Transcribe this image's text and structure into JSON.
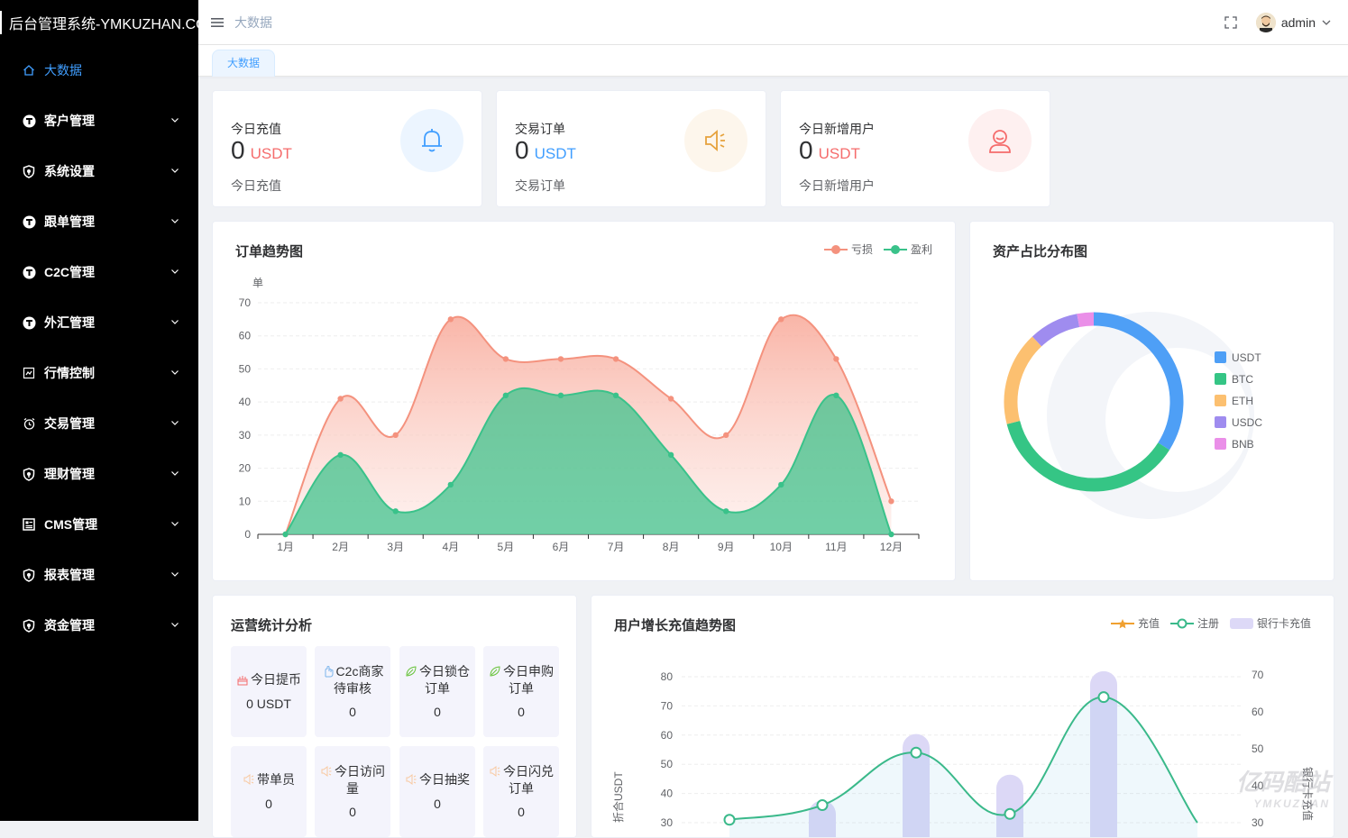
{
  "app": {
    "title": "后台管理系统-YMKUZHAN.COM"
  },
  "sidebar": {
    "items": [
      {
        "label": "大数据",
        "icon": "home-icon",
        "active": true
      },
      {
        "label": "客户管理",
        "icon": "settings-circle-icon"
      },
      {
        "label": "系统设置",
        "icon": "shield-icon"
      },
      {
        "label": "跟单管理",
        "icon": "settings-circle-icon"
      },
      {
        "label": "C2C管理",
        "icon": "settings-circle-icon"
      },
      {
        "label": "外汇管理",
        "icon": "settings-circle-icon"
      },
      {
        "label": "行情控制",
        "icon": "chart-doc-icon"
      },
      {
        "label": "交易管理",
        "icon": "alarm-icon"
      },
      {
        "label": "理财管理",
        "icon": "shield-icon"
      },
      {
        "label": "CMS管理",
        "icon": "grid-doc-icon"
      },
      {
        "label": "报表管理",
        "icon": "shield-icon"
      },
      {
        "label": "资金管理",
        "icon": "shield-icon"
      }
    ]
  },
  "header": {
    "breadcrumb": "大数据",
    "username": "admin"
  },
  "tags": {
    "active": "大数据"
  },
  "stats": [
    {
      "title": "今日充值",
      "value": "0",
      "unit": "USDT",
      "unit_color": "#f56c6c",
      "sub": "今日充值",
      "icon": "bell-icon",
      "bg": "#ecf5ff",
      "icon_color": "#409eff"
    },
    {
      "title": "交易订单",
      "value": "0",
      "unit": "USDT",
      "unit_color": "#409eff",
      "sub": "交易订单",
      "icon": "speaker-icon",
      "bg": "#fdf6ec",
      "icon_color": "#e6a23c"
    },
    {
      "title": "今日新增用户",
      "value": "0",
      "unit": "USDT",
      "unit_color": "#f56c6c",
      "sub": "今日新增用户",
      "icon": "user-icon",
      "bg": "#fef0f0",
      "icon_color": "#f56c6c"
    }
  ],
  "order_chart": {
    "title": "订单趋势图",
    "legend": [
      "亏损",
      "盈利"
    ],
    "colors": [
      "#f4927e",
      "#3ac28a"
    ]
  },
  "asset_chart": {
    "title": "资产占比分布图",
    "legend": [
      "USDT",
      "BTC",
      "ETH",
      "USDC",
      "BNB"
    ],
    "colors": [
      "#4e9ff6",
      "#35c585",
      "#fcc070",
      "#9f8cef",
      "#ea8fe8"
    ]
  },
  "ops": {
    "title": "运营统计分析",
    "boxes": [
      {
        "label": "今日提币",
        "value": "0 USDT",
        "icon": "cake-icon"
      },
      {
        "label": "C2c商家待审核",
        "value": "0",
        "icon": "hand-icon"
      },
      {
        "label": "今日锁仓订单",
        "value": "0",
        "icon": "leaf-icon"
      },
      {
        "label": "今日申购订单",
        "value": "0",
        "icon": "leaf-icon"
      },
      {
        "label": "带单员",
        "value": "0",
        "icon": "speaker-icon"
      },
      {
        "label": "今日访问量",
        "value": "0",
        "icon": "speaker-icon"
      },
      {
        "label": "今日抽奖",
        "value": "0",
        "icon": "speaker-icon"
      },
      {
        "label": "今日闪兑订单",
        "value": "0",
        "icon": "speaker-icon"
      }
    ]
  },
  "growth_chart": {
    "title": "用户增长充值趋势图",
    "legend": [
      "充值",
      "注册",
      "银行卡充值"
    ],
    "left_axis_label": "折合USDT",
    "right_axis_label": "银行卡充值"
  },
  "watermark": {
    "main": "亿码酷站",
    "sub": "YMKUZHAN"
  },
  "chart_data": [
    {
      "type": "area",
      "title": "订单趋势图",
      "ylabel": "单",
      "categories": [
        "1月",
        "2月",
        "3月",
        "4月",
        "5月",
        "6月",
        "7月",
        "8月",
        "9月",
        "10月",
        "11月",
        "12月"
      ],
      "ylim": [
        0,
        70
      ],
      "yticks": [
        0,
        10,
        20,
        30,
        40,
        50,
        60,
        70
      ],
      "series": [
        {
          "name": "亏损",
          "values": [
            0,
            41,
            30,
            65,
            53,
            53,
            53,
            41,
            30,
            65,
            53,
            10
          ]
        },
        {
          "name": "盈利",
          "values": [
            0,
            24,
            7,
            15,
            42,
            42,
            42,
            24,
            7,
            15,
            42,
            0
          ]
        }
      ],
      "legend_position": "top-right"
    },
    {
      "type": "pie",
      "title": "资产占比分布图",
      "categories": [
        "USDT",
        "BTC",
        "ETH",
        "USDC",
        "BNB"
      ],
      "values": [
        34,
        37,
        17,
        9,
        3
      ],
      "legend_position": "right"
    },
    {
      "type": "line",
      "title": "用户增长充值趋势图",
      "ylabel": "折合USDT",
      "y2label": "银行卡充值",
      "ylim": [
        30,
        80
      ],
      "y2lim": [
        30,
        70
      ],
      "yticks": [
        30,
        40,
        50,
        60,
        70,
        80
      ],
      "y2ticks": [
        30,
        40,
        50,
        60,
        70
      ],
      "series": [
        {
          "name": "注册",
          "values": [
            31,
            36,
            54,
            33,
            73,
            30
          ]
        },
        {
          "name": "银行卡充值",
          "values": [
            36,
            54,
            43,
            71
          ]
        }
      ]
    }
  ]
}
